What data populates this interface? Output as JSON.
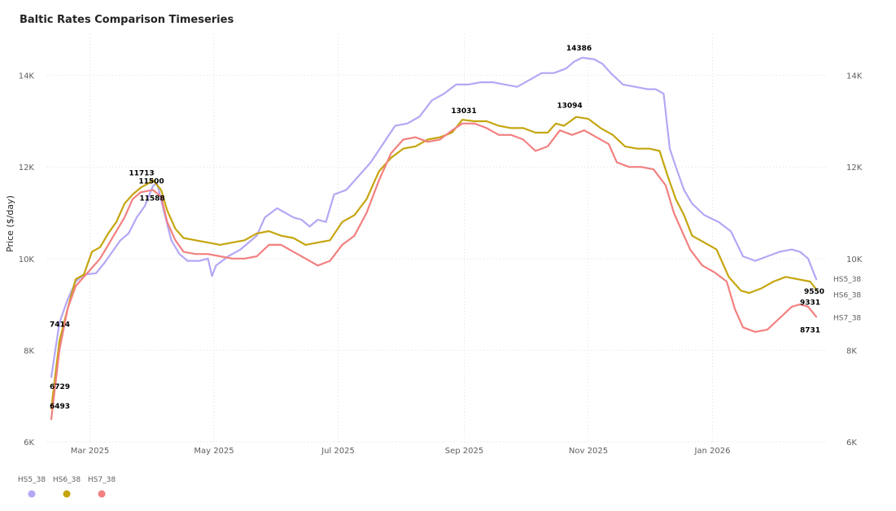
{
  "chart_data": {
    "type": "line",
    "title": "Baltic Rates Comparison Timeseries",
    "ylabel": "Price ($/day)",
    "xlabel": "",
    "x_tick_labels": [
      "Mar 2025",
      "May 2025",
      "Jul 2025",
      "Sep 2025",
      "Nov 2025",
      "Jan 2026"
    ],
    "x_tick_dates": [
      "2025-03-01",
      "2025-05-01",
      "2025-07-01",
      "2025-09-01",
      "2025-11-01",
      "2026-01-01"
    ],
    "xlim": [
      "2025-02-08",
      "2026-02-27"
    ],
    "y_ticks": [
      6000,
      8000,
      10000,
      12000,
      14000
    ],
    "y_tick_labels": [
      "6K",
      "8K",
      "10K",
      "12K",
      "14K"
    ],
    "ylim": [
      6000,
      14900
    ],
    "secondary_y_tick_labels": [
      "6K",
      "8K",
      "10K",
      "12K",
      "14K"
    ],
    "grid": true,
    "legend_position": "bottom-left",
    "series": [
      {
        "name": "HS5_38",
        "color": "#B4A7F5",
        "points": [
          [
            "2025-02-10",
            7414
          ],
          [
            "2025-02-14",
            8600
          ],
          [
            "2025-02-18",
            9100
          ],
          [
            "2025-02-22",
            9500
          ],
          [
            "2025-02-26",
            9650
          ],
          [
            "2025-03-04",
            9680
          ],
          [
            "2025-03-08",
            9900
          ],
          [
            "2025-03-12",
            10150
          ],
          [
            "2025-03-16",
            10400
          ],
          [
            "2025-03-20",
            10550
          ],
          [
            "2025-03-24",
            10900
          ],
          [
            "2025-03-28",
            11150
          ],
          [
            "2025-04-01",
            11588
          ],
          [
            "2025-04-03",
            11650
          ],
          [
            "2025-04-06",
            11100
          ],
          [
            "2025-04-10",
            10400
          ],
          [
            "2025-04-14",
            10100
          ],
          [
            "2025-04-18",
            9950
          ],
          [
            "2025-04-24",
            9950
          ],
          [
            "2025-04-28",
            10000
          ],
          [
            "2025-04-30",
            9620
          ],
          [
            "2025-05-02",
            9850
          ],
          [
            "2025-05-08",
            10050
          ],
          [
            "2025-05-14",
            10200
          ],
          [
            "2025-05-18",
            10350
          ],
          [
            "2025-05-22",
            10500
          ],
          [
            "2025-05-26",
            10900
          ],
          [
            "2025-06-01",
            11100
          ],
          [
            "2025-06-05",
            11000
          ],
          [
            "2025-06-09",
            10900
          ],
          [
            "2025-06-13",
            10850
          ],
          [
            "2025-06-17",
            10700
          ],
          [
            "2025-06-21",
            10850
          ],
          [
            "2025-06-25",
            10800
          ],
          [
            "2025-06-29",
            11400
          ],
          [
            "2025-07-05",
            11500
          ],
          [
            "2025-07-11",
            11800
          ],
          [
            "2025-07-17",
            12100
          ],
          [
            "2025-07-23",
            12500
          ],
          [
            "2025-07-29",
            12900
          ],
          [
            "2025-08-04",
            12950
          ],
          [
            "2025-08-10",
            13100
          ],
          [
            "2025-08-16",
            13450
          ],
          [
            "2025-08-22",
            13600
          ],
          [
            "2025-08-28",
            13800
          ],
          [
            "2025-09-03",
            13800
          ],
          [
            "2025-09-09",
            13850
          ],
          [
            "2025-09-15",
            13850
          ],
          [
            "2025-09-21",
            13800
          ],
          [
            "2025-09-27",
            13750
          ],
          [
            "2025-10-03",
            13900
          ],
          [
            "2025-10-09",
            14050
          ],
          [
            "2025-10-15",
            14050
          ],
          [
            "2025-10-21",
            14150
          ],
          [
            "2025-10-25",
            14300
          ],
          [
            "2025-10-29",
            14386
          ],
          [
            "2025-11-04",
            14350
          ],
          [
            "2025-11-08",
            14250
          ],
          [
            "2025-11-12",
            14050
          ],
          [
            "2025-11-18",
            13800
          ],
          [
            "2025-11-24",
            13750
          ],
          [
            "2025-11-30",
            13700
          ],
          [
            "2025-12-04",
            13700
          ],
          [
            "2025-12-08",
            13600
          ],
          [
            "2025-12-11",
            12400
          ],
          [
            "2025-12-14",
            12000
          ],
          [
            "2025-12-18",
            11500
          ],
          [
            "2025-12-22",
            11200
          ],
          [
            "2025-12-28",
            10950
          ],
          [
            "2026-01-04",
            10800
          ],
          [
            "2026-01-10",
            10600
          ],
          [
            "2026-01-16",
            10050
          ],
          [
            "2026-01-22",
            9950
          ],
          [
            "2026-01-28",
            10050
          ],
          [
            "2026-02-03",
            10150
          ],
          [
            "2026-02-09",
            10200
          ],
          [
            "2026-02-13",
            10150
          ],
          [
            "2026-02-17",
            10000
          ],
          [
            "2026-02-21",
            9550
          ]
        ]
      },
      {
        "name": "HS6_38",
        "color": "#C5A50F",
        "points": [
          [
            "2025-02-10",
            6729
          ],
          [
            "2025-02-14",
            8200
          ],
          [
            "2025-02-18",
            8900
          ],
          [
            "2025-02-22",
            9550
          ],
          [
            "2025-02-26",
            9650
          ],
          [
            "2025-03-02",
            10150
          ],
          [
            "2025-03-06",
            10250
          ],
          [
            "2025-03-10",
            10550
          ],
          [
            "2025-03-14",
            10800
          ],
          [
            "2025-03-18",
            11200
          ],
          [
            "2025-03-22",
            11400
          ],
          [
            "2025-03-26",
            11550
          ],
          [
            "2025-03-30",
            11650
          ],
          [
            "2025-04-01",
            11713
          ],
          [
            "2025-04-05",
            11500
          ],
          [
            "2025-04-08",
            11050
          ],
          [
            "2025-04-12",
            10650
          ],
          [
            "2025-04-16",
            10450
          ],
          [
            "2025-04-22",
            10400
          ],
          [
            "2025-04-28",
            10350
          ],
          [
            "2025-05-04",
            10300
          ],
          [
            "2025-05-10",
            10350
          ],
          [
            "2025-05-16",
            10400
          ],
          [
            "2025-05-22",
            10550
          ],
          [
            "2025-05-28",
            10600
          ],
          [
            "2025-06-03",
            10500
          ],
          [
            "2025-06-09",
            10450
          ],
          [
            "2025-06-15",
            10300
          ],
          [
            "2025-06-21",
            10350
          ],
          [
            "2025-06-27",
            10400
          ],
          [
            "2025-07-03",
            10800
          ],
          [
            "2025-07-09",
            10950
          ],
          [
            "2025-07-15",
            11300
          ],
          [
            "2025-07-21",
            11900
          ],
          [
            "2025-07-27",
            12200
          ],
          [
            "2025-08-02",
            12400
          ],
          [
            "2025-08-08",
            12450
          ],
          [
            "2025-08-14",
            12600
          ],
          [
            "2025-08-20",
            12650
          ],
          [
            "2025-08-26",
            12750
          ],
          [
            "2025-08-31",
            13031
          ],
          [
            "2025-09-06",
            13000
          ],
          [
            "2025-09-12",
            13000
          ],
          [
            "2025-09-18",
            12900
          ],
          [
            "2025-09-24",
            12850
          ],
          [
            "2025-09-30",
            12850
          ],
          [
            "2025-10-06",
            12750
          ],
          [
            "2025-10-12",
            12750
          ],
          [
            "2025-10-16",
            12950
          ],
          [
            "2025-10-20",
            12900
          ],
          [
            "2025-10-26",
            13094
          ],
          [
            "2025-11-01",
            13050
          ],
          [
            "2025-11-07",
            12850
          ],
          [
            "2025-11-13",
            12700
          ],
          [
            "2025-11-19",
            12450
          ],
          [
            "2025-11-25",
            12400
          ],
          [
            "2025-12-01",
            12400
          ],
          [
            "2025-12-06",
            12350
          ],
          [
            "2025-12-10",
            11800
          ],
          [
            "2025-12-14",
            11300
          ],
          [
            "2025-12-18",
            10950
          ],
          [
            "2025-12-22",
            10500
          ],
          [
            "2025-12-28",
            10350
          ],
          [
            "2026-01-03",
            10200
          ],
          [
            "2026-01-09",
            9600
          ],
          [
            "2026-01-15",
            9300
          ],
          [
            "2026-01-19",
            9250
          ],
          [
            "2026-01-25",
            9350
          ],
          [
            "2026-01-31",
            9500
          ],
          [
            "2026-02-06",
            9600
          ],
          [
            "2026-02-12",
            9550
          ],
          [
            "2026-02-18",
            9500
          ],
          [
            "2026-02-21",
            9331
          ]
        ]
      },
      {
        "name": "HS7_38",
        "color": "#F28080",
        "points": [
          [
            "2025-02-10",
            6493
          ],
          [
            "2025-02-14",
            8000
          ],
          [
            "2025-02-18",
            8900
          ],
          [
            "2025-02-22",
            9400
          ],
          [
            "2025-02-26",
            9600
          ],
          [
            "2025-03-02",
            9800
          ],
          [
            "2025-03-06",
            10000
          ],
          [
            "2025-03-10",
            10300
          ],
          [
            "2025-03-14",
            10600
          ],
          [
            "2025-03-18",
            10900
          ],
          [
            "2025-03-22",
            11300
          ],
          [
            "2025-03-26",
            11450
          ],
          [
            "2025-04-01",
            11500
          ],
          [
            "2025-04-05",
            11350
          ],
          [
            "2025-04-08",
            10800
          ],
          [
            "2025-04-12",
            10400
          ],
          [
            "2025-04-16",
            10150
          ],
          [
            "2025-04-22",
            10100
          ],
          [
            "2025-04-28",
            10100
          ],
          [
            "2025-05-04",
            10050
          ],
          [
            "2025-05-10",
            10000
          ],
          [
            "2025-05-16",
            10000
          ],
          [
            "2025-05-22",
            10050
          ],
          [
            "2025-05-28",
            10300
          ],
          [
            "2025-06-03",
            10300
          ],
          [
            "2025-06-09",
            10150
          ],
          [
            "2025-06-15",
            10000
          ],
          [
            "2025-06-21",
            9850
          ],
          [
            "2025-06-27",
            9950
          ],
          [
            "2025-07-03",
            10300
          ],
          [
            "2025-07-09",
            10500
          ],
          [
            "2025-07-15",
            11000
          ],
          [
            "2025-07-21",
            11700
          ],
          [
            "2025-07-27",
            12300
          ],
          [
            "2025-08-02",
            12600
          ],
          [
            "2025-08-08",
            12650
          ],
          [
            "2025-08-14",
            12550
          ],
          [
            "2025-08-20",
            12600
          ],
          [
            "2025-08-26",
            12800
          ],
          [
            "2025-08-31",
            12950
          ],
          [
            "2025-09-06",
            12950
          ],
          [
            "2025-09-12",
            12850
          ],
          [
            "2025-09-18",
            12700
          ],
          [
            "2025-09-24",
            12700
          ],
          [
            "2025-09-30",
            12600
          ],
          [
            "2025-10-06",
            12350
          ],
          [
            "2025-10-12",
            12450
          ],
          [
            "2025-10-18",
            12800
          ],
          [
            "2025-10-24",
            12700
          ],
          [
            "2025-10-30",
            12800
          ],
          [
            "2025-11-05",
            12650
          ],
          [
            "2025-11-11",
            12500
          ],
          [
            "2025-11-15",
            12100
          ],
          [
            "2025-11-21",
            12000
          ],
          [
            "2025-11-27",
            12000
          ],
          [
            "2025-12-03",
            11950
          ],
          [
            "2025-12-09",
            11600
          ],
          [
            "2025-12-13",
            11000
          ],
          [
            "2025-12-17",
            10600
          ],
          [
            "2025-12-21",
            10200
          ],
          [
            "2025-12-27",
            9850
          ],
          [
            "2026-01-02",
            9700
          ],
          [
            "2026-01-08",
            9500
          ],
          [
            "2026-01-12",
            8900
          ],
          [
            "2026-01-16",
            8500
          ],
          [
            "2026-01-22",
            8400
          ],
          [
            "2026-01-28",
            8450
          ],
          [
            "2026-02-03",
            8700
          ],
          [
            "2026-02-09",
            8950
          ],
          [
            "2026-02-13",
            9000
          ],
          [
            "2026-02-17",
            8950
          ],
          [
            "2026-02-21",
            8731
          ]
        ]
      }
    ],
    "data_labels": [
      {
        "series": "HS5_38",
        "text": "7414"
      },
      {
        "series": "HS6_38",
        "text": "6729"
      },
      {
        "series": "HS7_38",
        "text": "6493"
      },
      {
        "series": "HS6_38",
        "text": "11713"
      },
      {
        "series": "HS7_38",
        "text": "11500"
      },
      {
        "series": "HS5_38",
        "text": "11588"
      },
      {
        "series": "HS6_38",
        "text": "13031"
      },
      {
        "series": "HS5_38",
        "text": "14386"
      },
      {
        "series": "HS6_38",
        "text": "13094"
      },
      {
        "series": "HS5_38",
        "text": "9550"
      },
      {
        "series": "HS6_38",
        "text": "9331"
      },
      {
        "series": "HS7_38",
        "text": "8731"
      }
    ],
    "end_labels": [
      "HS5_38",
      "HS6_38",
      "HS7_38"
    ]
  }
}
